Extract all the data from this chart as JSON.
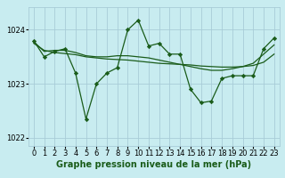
{
  "xlabel": "Graphe pression niveau de la mer (hPa)",
  "bg_color": "#c8ecf0",
  "grid_color": "#a8ccd8",
  "line_color": "#1a5c1a",
  "x": [
    0,
    1,
    2,
    3,
    4,
    5,
    6,
    7,
    8,
    9,
    10,
    11,
    12,
    13,
    14,
    15,
    16,
    17,
    18,
    19,
    20,
    21,
    22,
    23
  ],
  "y_main": [
    1023.8,
    1023.5,
    1023.6,
    1023.65,
    1023.2,
    1022.35,
    1023.0,
    1023.2,
    1023.3,
    1024.0,
    1024.18,
    1023.7,
    1023.75,
    1023.55,
    1023.55,
    1022.9,
    1022.65,
    1022.68,
    1023.1,
    1023.15,
    1023.15,
    1023.15,
    1023.65,
    1023.85
  ],
  "y_smooth1": [
    1023.78,
    1023.6,
    1023.62,
    1023.62,
    1023.58,
    1023.52,
    1023.5,
    1023.5,
    1023.52,
    1023.52,
    1023.5,
    1023.48,
    1023.44,
    1023.4,
    1023.36,
    1023.32,
    1023.28,
    1023.25,
    1023.25,
    1023.28,
    1023.32,
    1023.38,
    1023.55,
    1023.72
  ],
  "y_smooth2": [
    1023.75,
    1023.62,
    1023.58,
    1023.56,
    1023.54,
    1023.5,
    1023.48,
    1023.46,
    1023.45,
    1023.44,
    1023.42,
    1023.4,
    1023.38,
    1023.37,
    1023.36,
    1023.35,
    1023.33,
    1023.32,
    1023.31,
    1023.31,
    1023.32,
    1023.34,
    1023.4,
    1023.55
  ],
  "ylim": [
    1021.85,
    1024.42
  ],
  "yticks": [
    1022,
    1023,
    1024
  ],
  "xlabel_fontsize": 7,
  "tick_fontsize": 6,
  "lw": 0.9
}
